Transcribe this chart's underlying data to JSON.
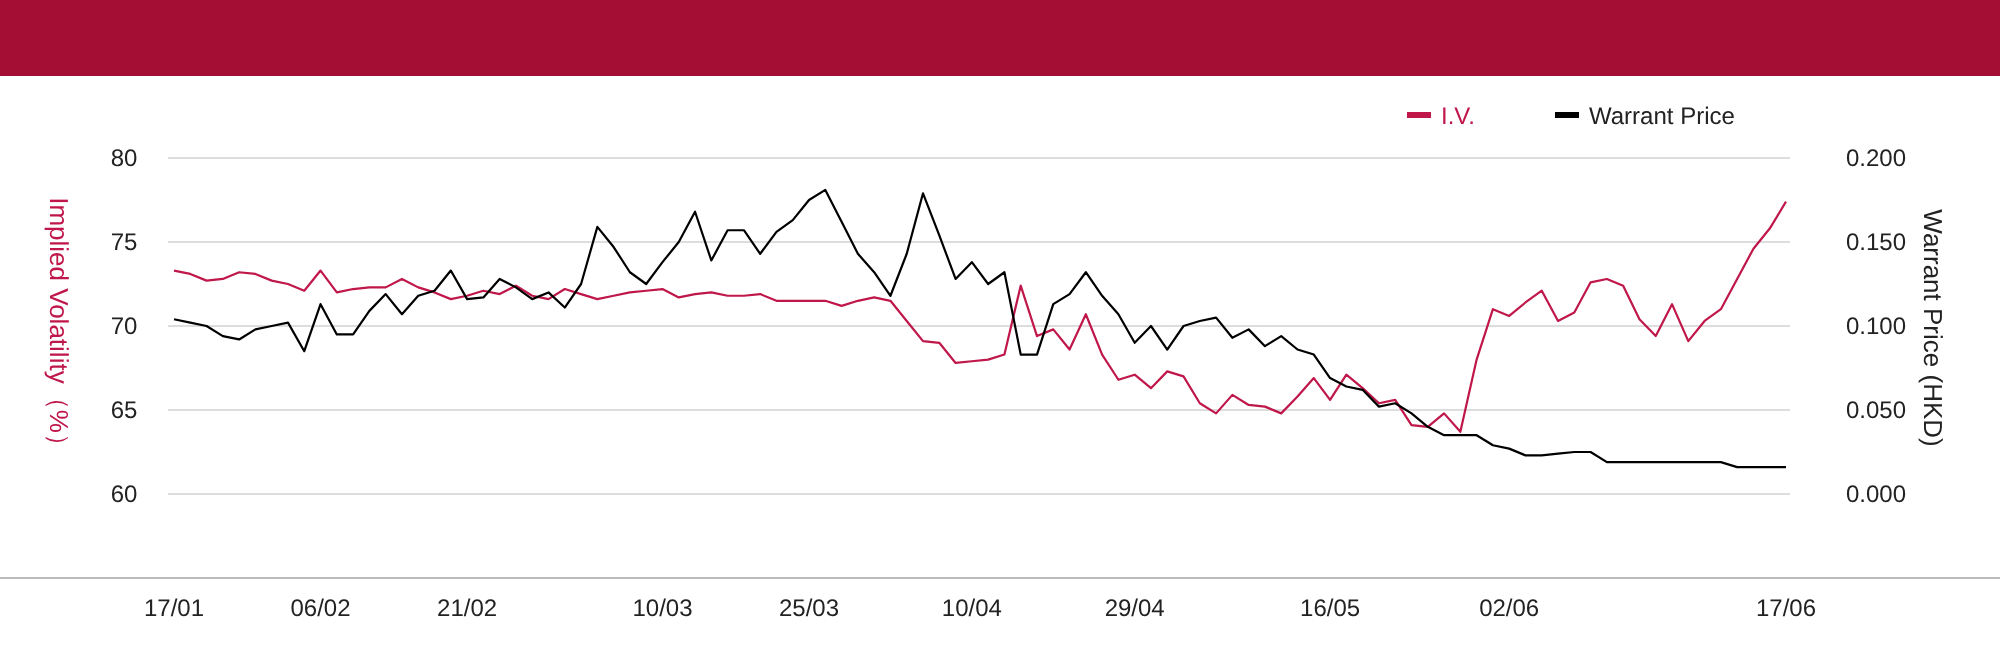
{
  "chart_data": {
    "type": "line",
    "ylabel": "Implied Volatility（%）",
    "y2label": "Warrant Price (HKD)",
    "categories": [
      "17/01",
      null,
      null,
      null,
      null,
      null,
      null,
      null,
      null,
      "06/02",
      null,
      null,
      null,
      null,
      null,
      null,
      null,
      null,
      "21/02",
      null,
      null,
      null,
      null,
      null,
      null,
      null,
      null,
      null,
      null,
      null,
      "10/03",
      null,
      null,
      null,
      null,
      null,
      null,
      null,
      null,
      "25/03",
      null,
      null,
      null,
      null,
      null,
      null,
      null,
      null,
      null,
      "10/04",
      null,
      null,
      null,
      null,
      null,
      null,
      null,
      null,
      null,
      "29/04",
      null,
      null,
      null,
      null,
      null,
      null,
      null,
      null,
      null,
      null,
      null,
      "16/05",
      null,
      null,
      null,
      null,
      null,
      null,
      null,
      null,
      null,
      null,
      "02/06",
      null,
      null,
      null,
      null,
      null,
      null,
      null,
      null,
      null,
      null,
      null,
      null,
      null,
      null,
      null,
      null,
      "17/06"
    ],
    "series": [
      {
        "name": "I.V.",
        "color": "#c0174a",
        "values": [
          73.3,
          73.1,
          72.7,
          72.8,
          73.2,
          73.1,
          72.7,
          72.5,
          72.1,
          73.3,
          72.0,
          72.2,
          72.3,
          72.3,
          72.8,
          72.3,
          72.0,
          71.6,
          71.8,
          72.1,
          71.9,
          72.4,
          71.8,
          71.6,
          72.2,
          71.9,
          71.6,
          71.8,
          72.0,
          72.1,
          72.2,
          71.7,
          71.9,
          72.0,
          71.8,
          71.8,
          71.9,
          71.5,
          71.5,
          71.5,
          71.5,
          71.2,
          71.5,
          71.7,
          71.5,
          70.3,
          69.1,
          69.0,
          67.8,
          67.9,
          68.0,
          68.3,
          72.4,
          69.4,
          69.8,
          68.6,
          70.7,
          68.3,
          66.8,
          67.1,
          66.3,
          67.3,
          67.0,
          65.4,
          64.8,
          65.9,
          65.3,
          65.2,
          64.8,
          65.8,
          66.9,
          65.6,
          67.1,
          66.3,
          65.4,
          65.6,
          64.1,
          64.0,
          64.8,
          63.7,
          68.0,
          71.0,
          70.6,
          71.4,
          72.1,
          70.3,
          70.8,
          72.6,
          72.8,
          72.4,
          70.4,
          69.4,
          71.3,
          69.1,
          70.3,
          71.0,
          72.8,
          74.6,
          75.8,
          77.4
        ]
      },
      {
        "name": "Warrant Price",
        "color": "#000000",
        "axis": "y2",
        "values": [
          0.104,
          0.102,
          0.1,
          0.094,
          0.092,
          0.098,
          0.1,
          0.102,
          0.085,
          0.113,
          0.095,
          0.095,
          0.109,
          0.119,
          0.107,
          0.118,
          0.121,
          0.133,
          0.116,
          0.117,
          0.128,
          0.123,
          0.116,
          0.12,
          0.111,
          0.125,
          0.159,
          0.147,
          0.132,
          0.125,
          0.138,
          0.15,
          0.168,
          0.139,
          0.157,
          0.157,
          0.143,
          0.156,
          0.163,
          0.175,
          0.181,
          0.162,
          0.143,
          0.132,
          0.118,
          0.143,
          0.179,
          0.154,
          0.128,
          0.138,
          0.125,
          0.132,
          0.083,
          0.083,
          0.113,
          0.119,
          0.132,
          0.118,
          0.107,
          0.09,
          0.1,
          0.086,
          0.1,
          0.103,
          0.105,
          0.093,
          0.098,
          0.088,
          0.094,
          0.086,
          0.083,
          0.069,
          0.064,
          0.062,
          0.052,
          0.054,
          0.048,
          0.04,
          0.035,
          0.035,
          0.035,
          0.029,
          0.027,
          0.023,
          0.023,
          0.024,
          0.025,
          0.025,
          0.019,
          0.019,
          0.019,
          0.019,
          0.019,
          0.019,
          0.019,
          0.019,
          0.016,
          0.016,
          0.016,
          0.016
        ]
      }
    ],
    "ylim": [
      55,
      80
    ],
    "yticks": [
      60,
      65,
      70,
      75,
      80
    ],
    "y2lim": [
      -0.05,
      0.2
    ],
    "y2ticks": [
      {
        "value": 0,
        "label": "0.000"
      },
      {
        "value": 0.05,
        "label": "0.050"
      },
      {
        "value": 0.1,
        "label": "0.100"
      },
      {
        "value": 0.15,
        "label": "0.150"
      },
      {
        "value": 0.2,
        "label": "0.200"
      }
    ],
    "grid": "y",
    "legend": "top right",
    "marker": "none",
    "line_style": "solid"
  }
}
